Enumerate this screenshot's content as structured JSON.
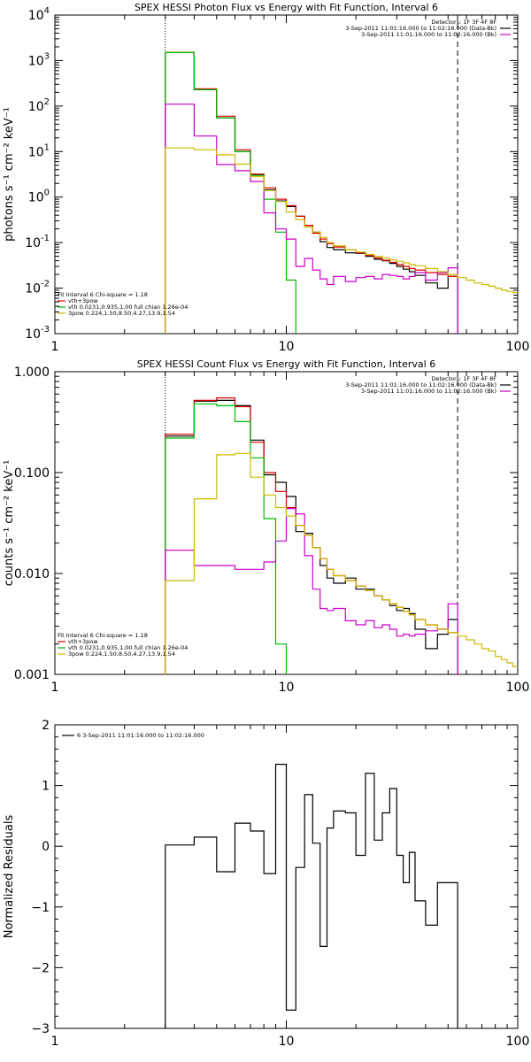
{
  "chart_data": [
    {
      "type": "line",
      "title": "SPEX HESSI Photon Flux vs Energy with Fit Function, Interval 6",
      "ylabel": "photons s⁻¹ cm⁻² keV⁻¹",
      "xlabel": "",
      "xscale": "log",
      "yscale": "log",
      "xlim": [
        1,
        100
      ],
      "ylim": [
        0.001,
        10000
      ],
      "xtick_labels": [
        "1",
        "10",
        "100"
      ],
      "ytick_labels": [
        {
          "b": "10",
          "e": "4",
          "v": 10000
        },
        {
          "b": "10",
          "e": "3",
          "v": 1000
        },
        {
          "b": "10",
          "e": "2",
          "v": 100
        },
        {
          "b": "10",
          "e": "1",
          "v": 10
        },
        {
          "b": "10",
          "e": "0",
          "v": 1
        },
        {
          "b": "10",
          "e": "-1",
          "v": 0.1
        },
        {
          "b": "10",
          "e": "-2",
          "v": 0.01
        },
        {
          "b": "10",
          "e": "-3",
          "v": 0.001
        }
      ],
      "vlines": [
        {
          "x": 3,
          "style": "dotted"
        },
        {
          "x": 55,
          "style": "dashed"
        }
      ],
      "legend_top": [
        {
          "text": "Detectors: 1F 3F 4F 8F",
          "color": ""
        },
        {
          "text": "3-Sep-2011 11:01:16.000 to 11:02:16.000 (Data-Bk)",
          "color": "#000000"
        },
        {
          "text": "3-Sep-2011 11:01:16.000 to 11:02:16.000 (Bk)",
          "color": "#cc00cc"
        }
      ],
      "legend_bottom": [
        {
          "text": "Fit Interval 6   Chi-square = 1.18",
          "color": ""
        },
        {
          "text": "vth+3pow",
          "color": "#dd0000"
        },
        {
          "text": "vth 0.0231,0.935,1.00  full chian 1.26e-04",
          "color": "#00bb00"
        },
        {
          "text": "3pow 0.224,1.50,8.50,4.27,13.9,1.54",
          "color": "#ccbb00"
        }
      ],
      "series": [
        {
          "color": "#000000",
          "edges": [
            3,
            4,
            5,
            6,
            7,
            8,
            9,
            10,
            11,
            12,
            13,
            14,
            15,
            16,
            18,
            20,
            22,
            24,
            26,
            28,
            30,
            32,
            34,
            36,
            40,
            45,
            50,
            55
          ],
          "values": [
            1500,
            230,
            55,
            10,
            3.1,
            1.45,
            0.82,
            0.62,
            0.38,
            0.24,
            0.17,
            0.105,
            0.078,
            0.07,
            0.06,
            0.058,
            0.05,
            0.043,
            0.04,
            0.035,
            0.03,
            0.026,
            0.023,
            0.019,
            0.013,
            0.01,
            0.018
          ]
        },
        {
          "color": "#dd0000",
          "edges": [
            3,
            4,
            5,
            6,
            7,
            8,
            9,
            10,
            11,
            12,
            13,
            14,
            15,
            16,
            18,
            20,
            22,
            24,
            26,
            28,
            30,
            32,
            34,
            36,
            40,
            45,
            50,
            55
          ],
          "values": [
            1500,
            240,
            60,
            11,
            3.2,
            1.6,
            0.9,
            0.65,
            0.38,
            0.24,
            0.16,
            0.12,
            0.095,
            0.08,
            0.07,
            0.06,
            0.052,
            0.046,
            0.041,
            0.037,
            0.033,
            0.03,
            0.027,
            0.025,
            0.022,
            0.02,
            0.018
          ]
        },
        {
          "color": "#00bb00",
          "edges": [
            3,
            4,
            5,
            6,
            7,
            8,
            9,
            10,
            11
          ],
          "values": [
            1500,
            230,
            55,
            10,
            3.0,
            0.9,
            0.17,
            0.015
          ]
        },
        {
          "color": "#cc00cc",
          "edges": [
            3,
            4,
            5,
            6,
            7,
            8,
            9,
            10,
            11,
            12,
            13,
            14,
            15,
            16,
            18,
            20,
            22,
            24,
            26,
            28,
            30,
            32,
            34,
            36,
            40,
            45,
            50,
            55
          ],
          "values": [
            110,
            22,
            5.2,
            3.8,
            2.2,
            0.45,
            0.2,
            0.12,
            0.03,
            0.045,
            0.025,
            0.016,
            0.012,
            0.018,
            0.014,
            0.017,
            0.018,
            0.016,
            0.02,
            0.019,
            0.018,
            0.016,
            0.018,
            0.022,
            0.015,
            0.022,
            0.028
          ]
        },
        {
          "color": "#ccbb00",
          "edges": [
            3,
            4,
            5,
            6,
            7,
            8,
            9,
            10,
            11,
            12,
            13,
            14,
            15,
            16,
            18,
            20,
            22,
            24,
            26,
            28,
            30,
            32,
            34,
            36,
            40,
            45,
            50,
            55,
            60,
            65,
            70,
            75,
            80,
            85,
            90,
            95,
            100
          ],
          "values": [
            12,
            11,
            8.5,
            5.3,
            2.8,
            1.4,
            0.8,
            0.47,
            0.32,
            0.22,
            0.17,
            0.13,
            0.1,
            0.085,
            0.07,
            0.062,
            0.055,
            0.05,
            0.046,
            0.042,
            0.039,
            0.036,
            0.033,
            0.031,
            0.027,
            0.023,
            0.02,
            0.017,
            0.015,
            0.013,
            0.012,
            0.011,
            0.01,
            0.009,
            0.0085,
            0.008
          ]
        }
      ]
    },
    {
      "type": "line",
      "title": "SPEX HESSI Count Flux vs Energy with Fit Function, Interval 6",
      "ylabel": "counts s⁻¹ cm⁻² keV⁻¹",
      "xlabel": "",
      "xscale": "log",
      "yscale": "log",
      "xlim": [
        1,
        100
      ],
      "ylim": [
        0.001,
        1.0
      ],
      "xtick_labels": [
        "1",
        "10",
        "100"
      ],
      "ytick_labels": [
        {
          "b": "1.000",
          "e": "",
          "v": 1.0
        },
        {
          "b": "0.100",
          "e": "",
          "v": 0.1
        },
        {
          "b": "0.010",
          "e": "",
          "v": 0.01
        },
        {
          "b": "0.001",
          "e": "",
          "v": 0.001
        }
      ],
      "vlines": [
        {
          "x": 3,
          "style": "dotted"
        },
        {
          "x": 55,
          "style": "dashed"
        }
      ],
      "legend_top": [
        {
          "text": "Detectors: 1F 3F 4F 8F",
          "color": ""
        },
        {
          "text": "3-Sep-2011 11:01:16.000 to 11:02:16.000 (Data-Bk)",
          "color": "#000000"
        },
        {
          "text": "3-Sep-2011 11:01:16.000 to 11:02:16.000 (Bk)",
          "color": "#cc00cc"
        }
      ],
      "legend_bottom": [
        {
          "text": "Fit Interval 6   Chi-square = 1.18",
          "color": ""
        },
        {
          "text": "vth+3pow",
          "color": "#dd0000"
        },
        {
          "text": "vth 0.0231,0.935,1.00  full chian 1.26e-04",
          "color": "#00bb00"
        },
        {
          "text": "3pow 0.224,1.50,8.50,4.27,13.9,1.54",
          "color": "#ccbb00"
        }
      ],
      "series": [
        {
          "color": "#000000",
          "edges": [
            3,
            4,
            5,
            6,
            7,
            8,
            9,
            10,
            11,
            12,
            13,
            14,
            15,
            16,
            18,
            20,
            22,
            24,
            26,
            28,
            30,
            32,
            34,
            36,
            40,
            45,
            50,
            55
          ],
          "values": [
            0.23,
            0.51,
            0.52,
            0.46,
            0.21,
            0.095,
            0.08,
            0.058,
            0.026,
            0.025,
            0.018,
            0.012,
            0.009,
            0.008,
            0.009,
            0.007,
            0.007,
            0.006,
            0.0055,
            0.0048,
            0.0043,
            0.0045,
            0.004,
            0.0028,
            0.0018,
            0.0025,
            0.0035
          ]
        },
        {
          "color": "#dd0000",
          "edges": [
            3,
            4,
            5,
            6,
            7,
            8,
            9,
            10,
            11,
            12,
            13,
            14,
            15,
            16,
            18,
            20,
            22,
            24,
            26,
            28,
            30,
            32,
            34,
            36,
            40,
            45,
            50,
            55
          ],
          "values": [
            0.24,
            0.52,
            0.55,
            0.45,
            0.2,
            0.1,
            0.065,
            0.045,
            0.03,
            0.024,
            0.018,
            0.014,
            0.011,
            0.0095,
            0.0085,
            0.0075,
            0.0068,
            0.006,
            0.0055,
            0.005,
            0.0046,
            0.0042,
            0.0039,
            0.0035,
            0.0031,
            0.0028,
            0.0026
          ]
        },
        {
          "color": "#00bb00",
          "edges": [
            3,
            4,
            5,
            6,
            7,
            8,
            9,
            10
          ],
          "values": [
            0.22,
            0.48,
            0.46,
            0.32,
            0.14,
            0.035,
            0.002
          ]
        },
        {
          "color": "#cc00cc",
          "edges": [
            3,
            4,
            5,
            6,
            7,
            8,
            9,
            10,
            11,
            12,
            13,
            14,
            15,
            16,
            18,
            20,
            22,
            24,
            26,
            28,
            30,
            32,
            34,
            36,
            40,
            45,
            50,
            55
          ],
          "values": [
            0.017,
            0.012,
            0.012,
            0.011,
            0.011,
            0.013,
            0.021,
            0.044,
            0.039,
            0.015,
            0.007,
            0.0045,
            0.0043,
            0.0045,
            0.0034,
            0.0031,
            0.0034,
            0.0029,
            0.0031,
            0.0028,
            0.0024,
            0.0025,
            0.0024,
            0.0025,
            0.0027,
            0.0028,
            0.005
          ]
        },
        {
          "color": "#ccbb00",
          "edges": [
            3,
            4,
            5,
            6,
            7,
            8,
            9,
            10,
            11,
            12,
            13,
            14,
            15,
            16,
            18,
            20,
            22,
            24,
            26,
            28,
            30,
            32,
            34,
            36,
            40,
            45,
            50,
            55,
            60,
            65,
            70,
            75,
            80,
            85,
            90,
            95,
            100
          ],
          "values": [
            0.0085,
            0.055,
            0.15,
            0.155,
            0.09,
            0.06,
            0.045,
            0.037,
            0.03,
            0.024,
            0.018,
            0.014,
            0.011,
            0.0095,
            0.0085,
            0.0075,
            0.0068,
            0.006,
            0.0055,
            0.005,
            0.0046,
            0.0042,
            0.0039,
            0.0035,
            0.0031,
            0.0028,
            0.0026,
            0.0024,
            0.0022,
            0.002,
            0.0018,
            0.0017,
            0.0015,
            0.0014,
            0.0013,
            0.0012
          ]
        }
      ]
    },
    {
      "type": "line",
      "title": "",
      "ylabel": "Normalized Residuals",
      "xlabel": "",
      "xscale": "log",
      "yscale": "linear",
      "xlim": [
        1,
        100
      ],
      "ylim": [
        -3,
        2
      ],
      "xtick_labels": [
        "1",
        "10",
        "100"
      ],
      "ytick_labels": [
        {
          "b": "2",
          "e": "",
          "v": 2
        },
        {
          "b": "1",
          "e": "",
          "v": 1
        },
        {
          "b": "0",
          "e": "",
          "v": 0
        },
        {
          "b": "−1",
          "e": "",
          "v": -1
        },
        {
          "b": "−2",
          "e": "",
          "v": -2
        },
        {
          "b": "−3",
          "e": "",
          "v": -3
        }
      ],
      "vlines": [],
      "legend_top": [
        {
          "text": "6  3-Sep-2011 11:01:16.000 to 11:02:16.000",
          "color": "#000000"
        }
      ],
      "legend_bottom": [],
      "series": [
        {
          "color": "#000000",
          "edges": [
            3,
            4,
            5,
            6,
            7,
            8,
            9,
            10,
            11,
            12,
            13,
            14,
            15,
            16,
            18,
            20,
            22,
            24,
            26,
            28,
            30,
            32,
            34,
            36,
            40,
            45,
            50,
            55
          ],
          "values": [
            0.02,
            0.15,
            -0.42,
            0.38,
            0.25,
            -0.45,
            1.35,
            -2.7,
            -0.35,
            0.85,
            0.05,
            -1.65,
            0.3,
            0.58,
            0.55,
            -0.15,
            1.2,
            0.1,
            0.55,
            0.95,
            -0.15,
            -0.6,
            -0.1,
            -0.9,
            -1.3,
            -0.6,
            -0.6
          ]
        }
      ]
    }
  ]
}
